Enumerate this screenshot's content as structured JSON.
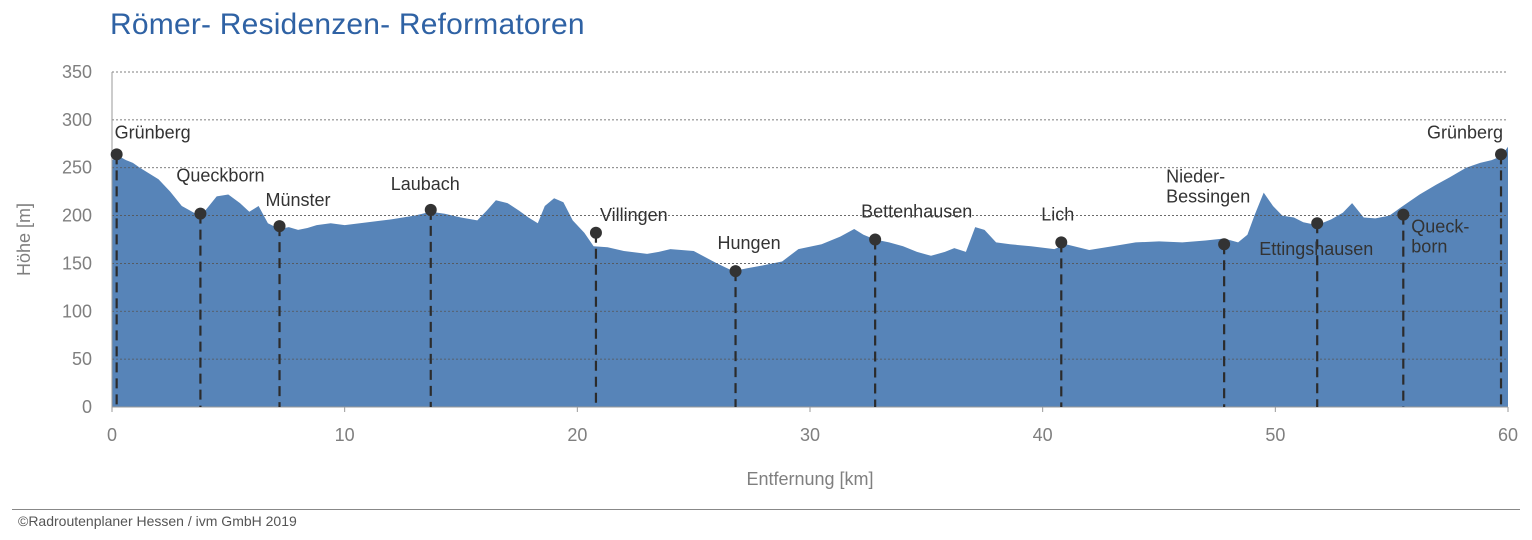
{
  "title": "Römer- Residenzen- Reformatoren",
  "footer": "©Radroutenplaner Hessen / ivm GmbH 2019",
  "colors": {
    "area": "#5784b8",
    "title": "#2f62a4",
    "axis_text": "#7f7f7f",
    "label_text": "#333333",
    "marker": "#333333",
    "grid": "#555555"
  },
  "chart_data": {
    "type": "area",
    "title": "Römer- Residenzen- Reformatoren",
    "xlabel": "Entfernung [km]",
    "ylabel": "Höhe [m]",
    "xlim": [
      0,
      60
    ],
    "ylim": [
      0,
      350
    ],
    "xticks": [
      0,
      10,
      20,
      30,
      40,
      50,
      60
    ],
    "yticks": [
      0,
      50,
      100,
      150,
      200,
      250,
      300,
      350
    ],
    "grid": "horizontal dashed",
    "series": [
      {
        "x": [
          0,
          0.3,
          0.6,
          0.9,
          1.2,
          1.6,
          2.0,
          2.5,
          3.0,
          3.6,
          4.0,
          4.5,
          5.0,
          5.5,
          5.9,
          6.3,
          6.7,
          7.2,
          7.6,
          8.0,
          8.4,
          8.8,
          9.4,
          10.0,
          11.0,
          12.0,
          13.0,
          13.7,
          14.3,
          15.0,
          15.7,
          16.1,
          16.5,
          17.0,
          17.5,
          17.9,
          18.3,
          18.6,
          19.0,
          19.4,
          19.8,
          20.3,
          20.7,
          21.3,
          22.0,
          23.0,
          23.5,
          24.0,
          25.0,
          26.0,
          26.7,
          27.3,
          28.0,
          28.8,
          29.5,
          30.5,
          31.3,
          31.9,
          32.3,
          32.8,
          33.4,
          34.0,
          34.6,
          35.2,
          35.8,
          36.2,
          36.7,
          37.1,
          37.5,
          38.0,
          38.6,
          39.5,
          40.5,
          41.0,
          42.0,
          43.0,
          44.0,
          45.0,
          46.0,
          47.0,
          47.8,
          48.4,
          48.8,
          49.1,
          49.5,
          49.9,
          50.3,
          50.8,
          51.2,
          51.8,
          52.4,
          52.9,
          53.3,
          53.8,
          54.3,
          54.9,
          55.6,
          56.2,
          56.9,
          57.5,
          58.2,
          58.8,
          59.3,
          59.7,
          60.0
        ],
        "y": [
          258,
          262,
          258,
          255,
          250,
          244,
          238,
          225,
          210,
          202,
          205,
          220,
          222,
          213,
          204,
          210,
          192,
          186,
          188,
          185,
          187,
          190,
          192,
          190,
          193,
          196,
          200,
          204,
          202,
          198,
          195,
          205,
          216,
          213,
          205,
          198,
          192,
          210,
          218,
          214,
          195,
          182,
          168,
          167,
          163,
          160,
          162,
          165,
          163,
          150,
          142,
          145,
          148,
          152,
          165,
          170,
          178,
          186,
          180,
          175,
          172,
          168,
          162,
          158,
          162,
          166,
          162,
          188,
          185,
          172,
          170,
          168,
          165,
          170,
          164,
          168,
          172,
          173,
          172,
          174,
          176,
          172,
          180,
          200,
          224,
          210,
          200,
          198,
          193,
          190,
          196,
          203,
          213,
          198,
          197,
          200,
          212,
          222,
          232,
          240,
          250,
          255,
          258,
          262,
          272
        ]
      }
    ],
    "places": [
      {
        "name": "Grünberg",
        "x": 0.2,
        "elev": 264
      },
      {
        "name": "Queckborn",
        "x": 3.8,
        "elev": 202
      },
      {
        "name": "Münster",
        "x": 7.2,
        "elev": 189
      },
      {
        "name": "Laubach",
        "x": 13.7,
        "elev": 206
      },
      {
        "name": "Villingen",
        "x": 20.8,
        "elev": 182
      },
      {
        "name": "Hungen",
        "x": 26.8,
        "elev": 142
      },
      {
        "name": "Bettenhausen",
        "x": 32.8,
        "elev": 175
      },
      {
        "name": "Lich",
        "x": 40.8,
        "elev": 172
      },
      {
        "name": "Nieder-Bessingen",
        "x": 47.8,
        "elev": 170
      },
      {
        "name": "Ettingshausen",
        "x": 51.8,
        "elev": 192
      },
      {
        "name": "Queck-born",
        "x": 55.5,
        "elev": 201
      },
      {
        "name": "Grünberg",
        "x": 59.7,
        "elev": 264
      }
    ]
  }
}
